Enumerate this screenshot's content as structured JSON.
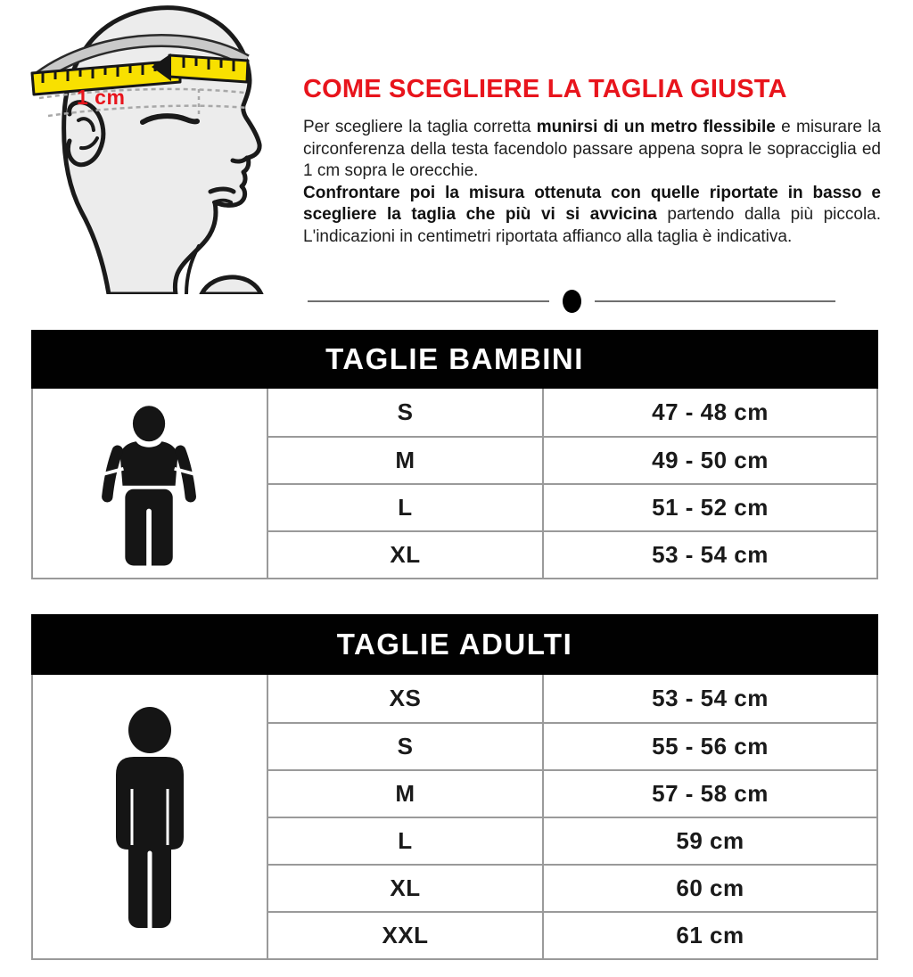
{
  "illustration": {
    "name": "head-with-measuring-tape",
    "tape_label": "1 cm"
  },
  "intro": {
    "title": "COME SCEGLIERE LA TAGLIA GIUSTA",
    "p1_start": "Per scegliere la taglia corretta ",
    "p1_bold": "munirsi di un metro flessibile",
    "p1_end": " e misurare la circonferenza della testa facendolo passare appena sopra le sopracciglia ed 1 cm sopra le orecchie.",
    "p2_bold": "Confrontare poi la misura ottenuta con quelle riportate in basso e scegliere la taglia che più vi si avvicina",
    "p2_end": " partendo dalla più piccola. L'indicazioni in centimetri riportata affianco alla taglia è indicativa."
  },
  "tables": [
    {
      "title": "TAGLIE BAMBINI",
      "icon": "child-silhouette-icon",
      "rows": [
        {
          "size": "S",
          "range": "47 - 48 cm"
        },
        {
          "size": "M",
          "range": "49 - 50 cm"
        },
        {
          "size": "L",
          "range": "51 - 52 cm"
        },
        {
          "size": "XL",
          "range": "53 - 54 cm"
        }
      ]
    },
    {
      "title": "TAGLIE ADULTI",
      "icon": "adult-silhouette-icon",
      "rows": [
        {
          "size": "XS",
          "range": "53 - 54 cm"
        },
        {
          "size": "S",
          "range": "55 - 56 cm"
        },
        {
          "size": "M",
          "range": "57 - 58 cm"
        },
        {
          "size": "L",
          "range": "59 cm"
        },
        {
          "size": "XL",
          "range": "60 cm"
        },
        {
          "size": "XXL",
          "range": "61 cm"
        }
      ]
    }
  ],
  "colors": {
    "accent_red": "#e8141c",
    "tape_yellow": "#f8e000",
    "head_fill": "#ececec",
    "table_header_bg": "#000000",
    "table_header_text": "#ffffff",
    "grid_border": "#9a9a9a",
    "silhouette_black": "#151515"
  }
}
